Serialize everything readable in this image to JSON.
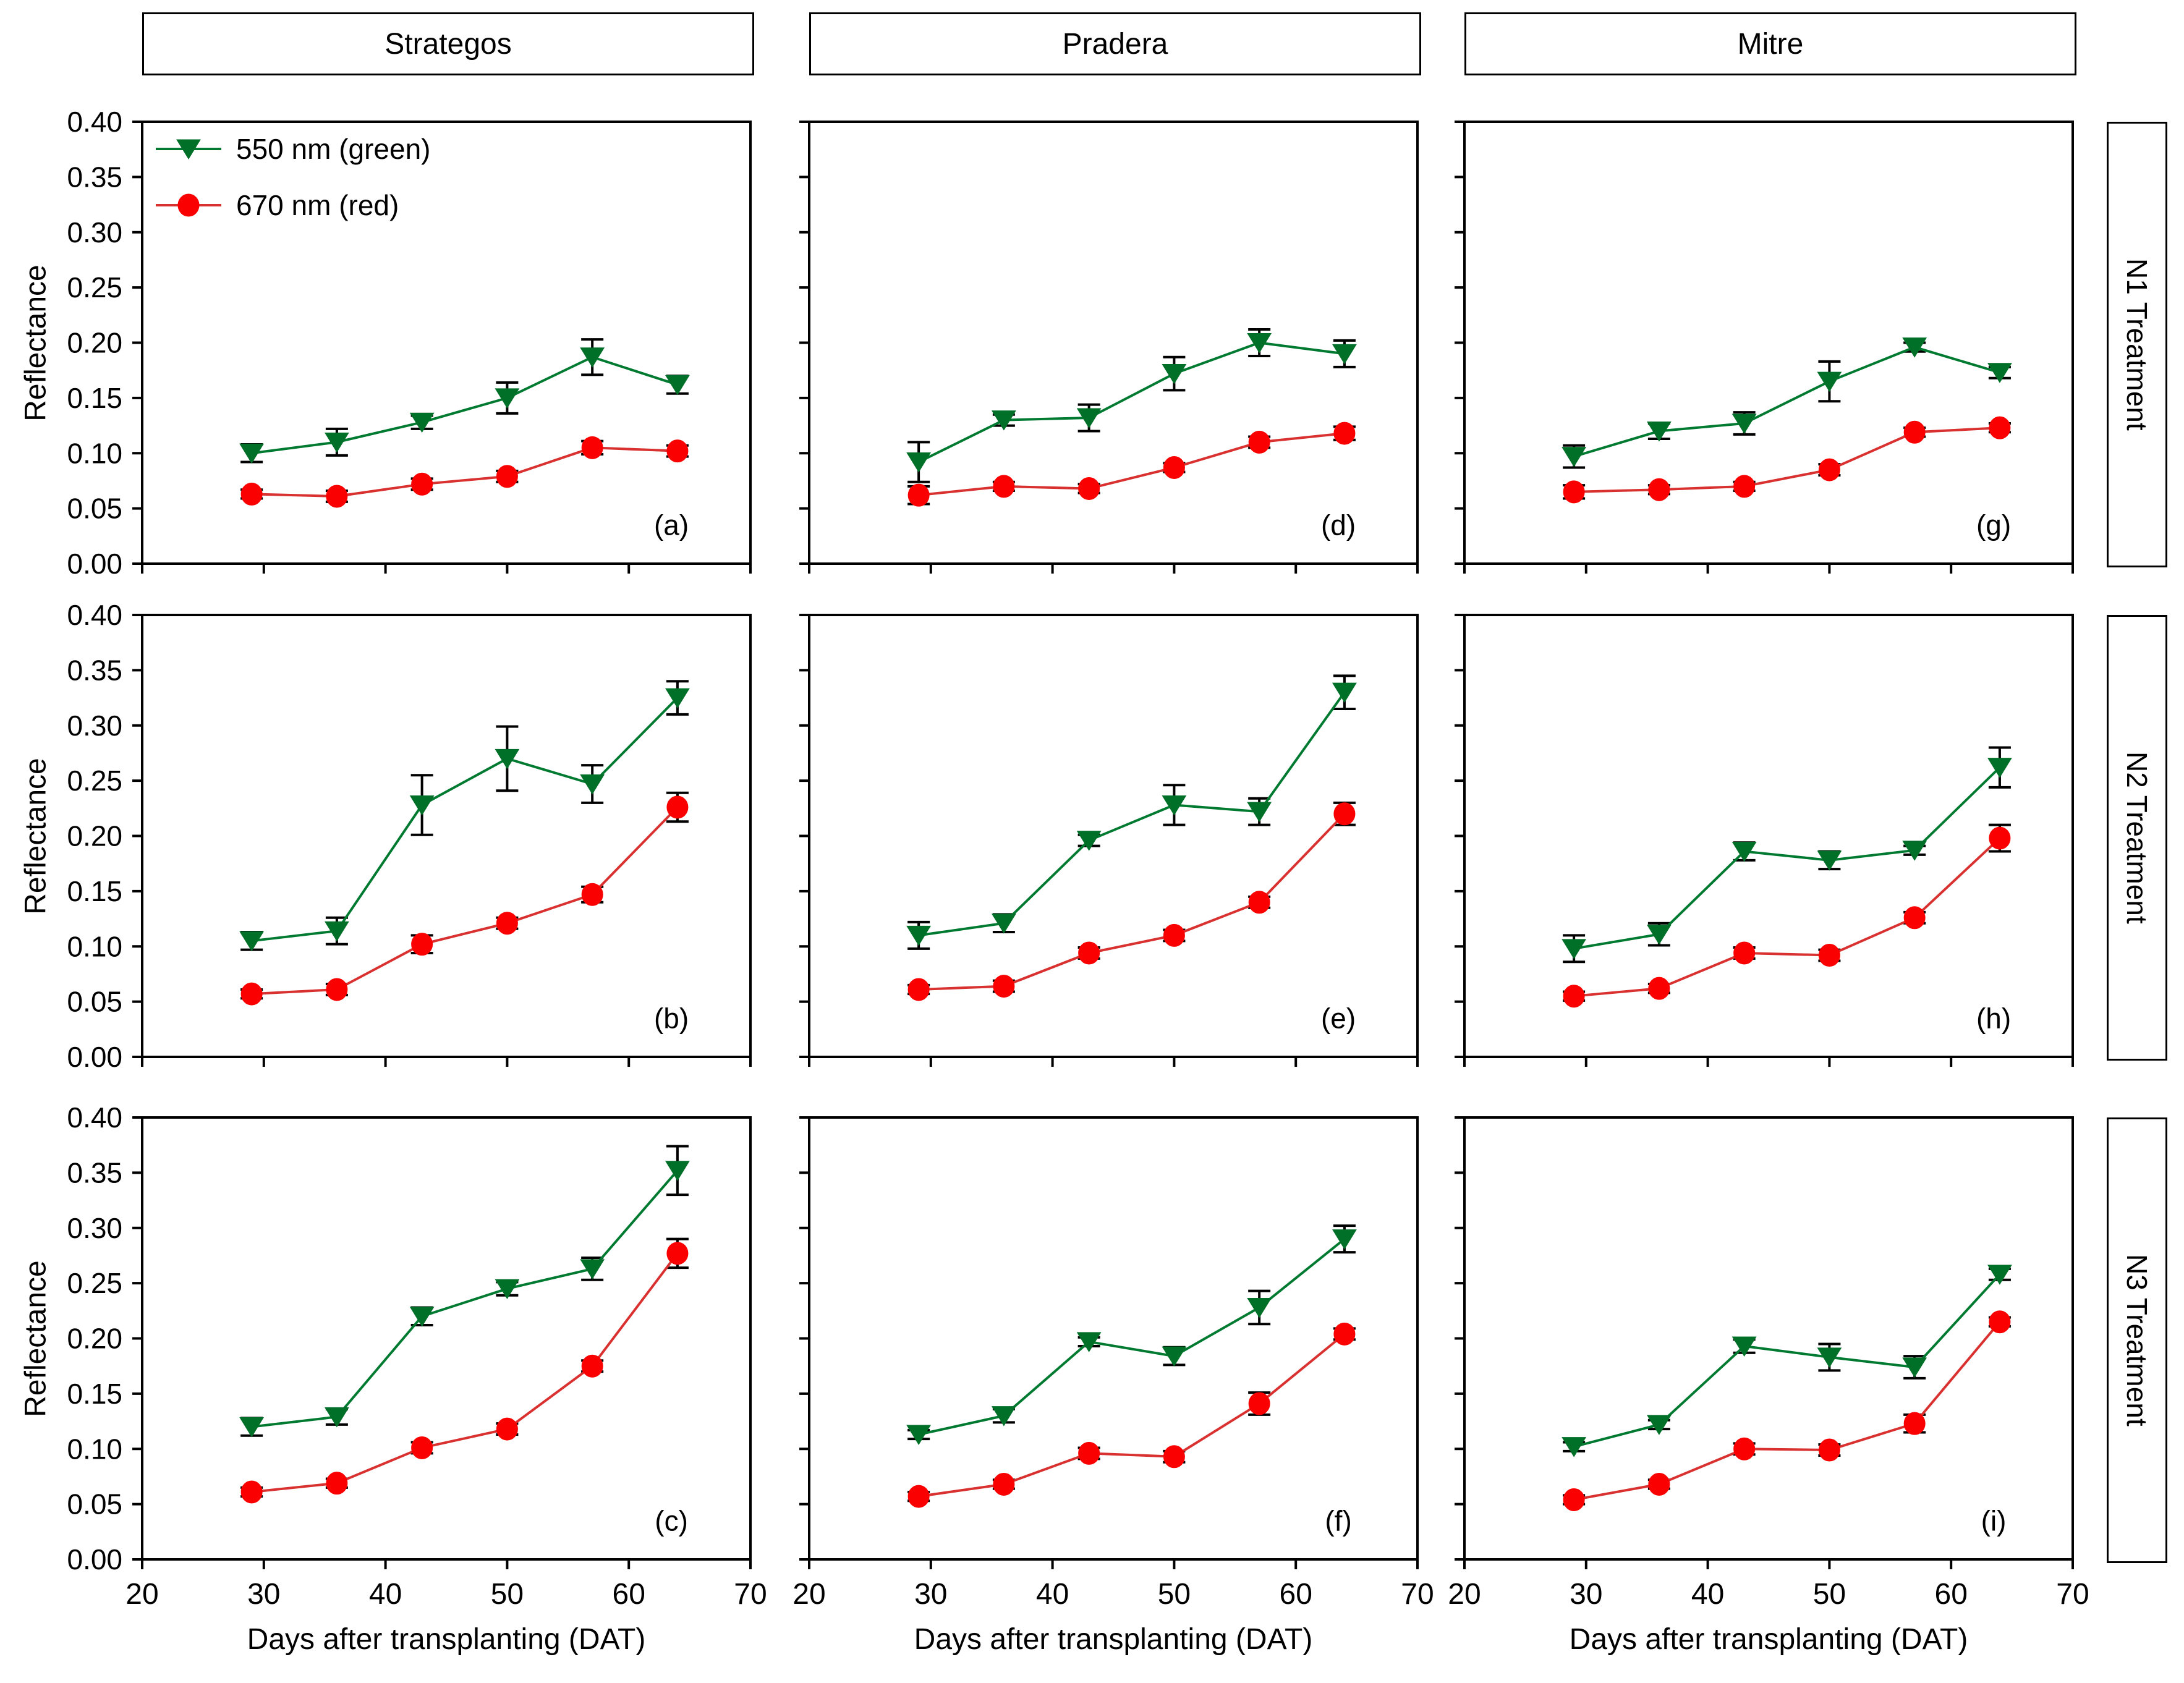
{
  "figure": {
    "col_headers": [
      "Strategos",
      "Pradera",
      "Mitre"
    ],
    "row_labels": [
      "N1 Treatment",
      "N2 Treatment",
      "N3 Treatment"
    ],
    "ylabel": "Reflectance",
    "xlabel": "Days after transplanting (DAT)",
    "colors": {
      "green_marker": "#006F28",
      "green_line": "#007A30",
      "red_marker": "#FA0000",
      "red_line": "#D93030",
      "axis": "#000000",
      "error_bar": "#000000"
    }
  },
  "legend": {
    "items": [
      {
        "label": "550 nm (green)",
        "series": "green"
      },
      {
        "label": "670 nm (red)",
        "series": "red"
      }
    ]
  },
  "axes": {
    "xlim": [
      20,
      70
    ],
    "ylim": [
      0.0,
      0.4
    ],
    "xticks": [
      20,
      30,
      40,
      50,
      60,
      70
    ],
    "ytick_labels": [
      "0.00",
      "0.05",
      "0.10",
      "0.15",
      "0.20",
      "0.25",
      "0.30",
      "0.35",
      "0.40"
    ],
    "x": [
      29,
      36,
      43,
      50,
      57,
      64
    ]
  },
  "chart_data": [
    {
      "type": "line",
      "panel": "(a)",
      "cultivar": "Strategos",
      "treatment": "N1",
      "row": 0,
      "col": 0,
      "series": [
        {
          "name": "550 nm (green)",
          "key": "green",
          "values": [
            0.1,
            0.11,
            0.128,
            0.15,
            0.187,
            0.162
          ],
          "errors": [
            0.008,
            0.012,
            0.006,
            0.014,
            0.016,
            0.008
          ]
        },
        {
          "name": "670 nm (red)",
          "key": "red",
          "values": [
            0.063,
            0.061,
            0.072,
            0.079,
            0.105,
            0.102
          ],
          "errors": [
            0.004,
            0.005,
            0.005,
            0.005,
            0.006,
            0.005
          ]
        }
      ]
    },
    {
      "type": "line",
      "panel": "(b)",
      "cultivar": "Strategos",
      "treatment": "N2",
      "row": 1,
      "col": 0,
      "series": [
        {
          "name": "550 nm (green)",
          "key": "green",
          "values": [
            0.105,
            0.114,
            0.228,
            0.27,
            0.247,
            0.325
          ],
          "errors": [
            0.008,
            0.012,
            0.027,
            0.029,
            0.017,
            0.015
          ]
        },
        {
          "name": "670 nm (red)",
          "key": "red",
          "values": [
            0.057,
            0.061,
            0.102,
            0.121,
            0.147,
            0.226
          ],
          "errors": [
            0.004,
            0.005,
            0.008,
            0.005,
            0.007,
            0.013
          ]
        }
      ]
    },
    {
      "type": "line",
      "panel": "(c)",
      "cultivar": "Strategos",
      "treatment": "N3",
      "row": 2,
      "col": 0,
      "series": [
        {
          "name": "550 nm (green)",
          "key": "green",
          "values": [
            0.12,
            0.129,
            0.22,
            0.245,
            0.263,
            0.352
          ],
          "errors": [
            0.008,
            0.007,
            0.008,
            0.006,
            0.01,
            0.022
          ]
        },
        {
          "name": "670 nm (red)",
          "key": "red",
          "values": [
            0.061,
            0.069,
            0.101,
            0.118,
            0.175,
            0.277
          ],
          "errors": [
            0.004,
            0.004,
            0.005,
            0.005,
            0.005,
            0.013
          ]
        }
      ]
    },
    {
      "type": "line",
      "panel": "(d)",
      "cultivar": "Pradera",
      "treatment": "N1",
      "row": 0,
      "col": 1,
      "series": [
        {
          "name": "550 nm (green)",
          "key": "green",
          "values": [
            0.092,
            0.13,
            0.132,
            0.172,
            0.2,
            0.19
          ],
          "errors": [
            0.018,
            0.005,
            0.012,
            0.015,
            0.012,
            0.012
          ]
        },
        {
          "name": "670 nm (red)",
          "key": "red",
          "values": [
            0.062,
            0.07,
            0.068,
            0.087,
            0.11,
            0.118
          ],
          "errors": [
            0.008,
            0.004,
            0.004,
            0.004,
            0.005,
            0.006
          ]
        }
      ]
    },
    {
      "type": "line",
      "panel": "(e)",
      "cultivar": "Pradera",
      "treatment": "N2",
      "row": 1,
      "col": 1,
      "series": [
        {
          "name": "550 nm (green)",
          "key": "green",
          "values": [
            0.11,
            0.121,
            0.196,
            0.228,
            0.222,
            0.33
          ],
          "errors": [
            0.012,
            0.008,
            0.005,
            0.018,
            0.012,
            0.015
          ]
        },
        {
          "name": "670 nm (red)",
          "key": "red",
          "values": [
            0.061,
            0.064,
            0.094,
            0.11,
            0.14,
            0.22
          ],
          "errors": [
            0.004,
            0.005,
            0.005,
            0.005,
            0.005,
            0.01
          ]
        }
      ]
    },
    {
      "type": "line",
      "panel": "(f)",
      "cultivar": "Pradera",
      "treatment": "N3",
      "row": 2,
      "col": 1,
      "series": [
        {
          "name": "550 nm (green)",
          "key": "green",
          "values": [
            0.113,
            0.13,
            0.197,
            0.184,
            0.228,
            0.29
          ],
          "errors": [
            0.004,
            0.006,
            0.004,
            0.008,
            0.015,
            0.012
          ]
        },
        {
          "name": "670 nm (red)",
          "key": "red",
          "values": [
            0.057,
            0.068,
            0.096,
            0.093,
            0.141,
            0.204
          ],
          "errors": [
            0.004,
            0.004,
            0.005,
            0.005,
            0.01,
            0.005
          ]
        }
      ]
    },
    {
      "type": "line",
      "panel": "(g)",
      "cultivar": "Mitre",
      "treatment": "N1",
      "row": 0,
      "col": 2,
      "series": [
        {
          "name": "550 nm (green)",
          "key": "green",
          "values": [
            0.097,
            0.12,
            0.127,
            0.165,
            0.196,
            0.173
          ],
          "errors": [
            0.01,
            0.007,
            0.01,
            0.018,
            0.004,
            0.005
          ]
        },
        {
          "name": "670 nm (red)",
          "key": "red",
          "values": [
            0.065,
            0.067,
            0.07,
            0.085,
            0.119,
            0.123
          ],
          "errors": [
            0.006,
            0.004,
            0.004,
            0.005,
            0.004,
            0.004
          ]
        }
      ]
    },
    {
      "type": "line",
      "panel": "(h)",
      "cultivar": "Mitre",
      "treatment": "N2",
      "row": 1,
      "col": 2,
      "series": [
        {
          "name": "550 nm (green)",
          "key": "green",
          "values": [
            0.098,
            0.111,
            0.186,
            0.178,
            0.187,
            0.262
          ],
          "errors": [
            0.012,
            0.01,
            0.008,
            0.008,
            0.004,
            0.018
          ]
        },
        {
          "name": "670 nm (red)",
          "key": "red",
          "values": [
            0.055,
            0.062,
            0.094,
            0.092,
            0.126,
            0.198
          ],
          "errors": [
            0.004,
            0.004,
            0.005,
            0.005,
            0.005,
            0.012
          ]
        }
      ]
    },
    {
      "type": "line",
      "panel": "(i)",
      "cultivar": "Mitre",
      "treatment": "N3",
      "row": 2,
      "col": 2,
      "series": [
        {
          "name": "550 nm (green)",
          "key": "green",
          "values": [
            0.102,
            0.122,
            0.193,
            0.183,
            0.174,
            0.258
          ],
          "errors": [
            0.004,
            0.004,
            0.006,
            0.012,
            0.01,
            0.005
          ]
        },
        {
          "name": "670 nm (red)",
          "key": "red",
          "values": [
            0.054,
            0.068,
            0.1,
            0.099,
            0.123,
            0.215
          ],
          "errors": [
            0.004,
            0.004,
            0.005,
            0.005,
            0.008,
            0.004
          ]
        }
      ]
    }
  ]
}
